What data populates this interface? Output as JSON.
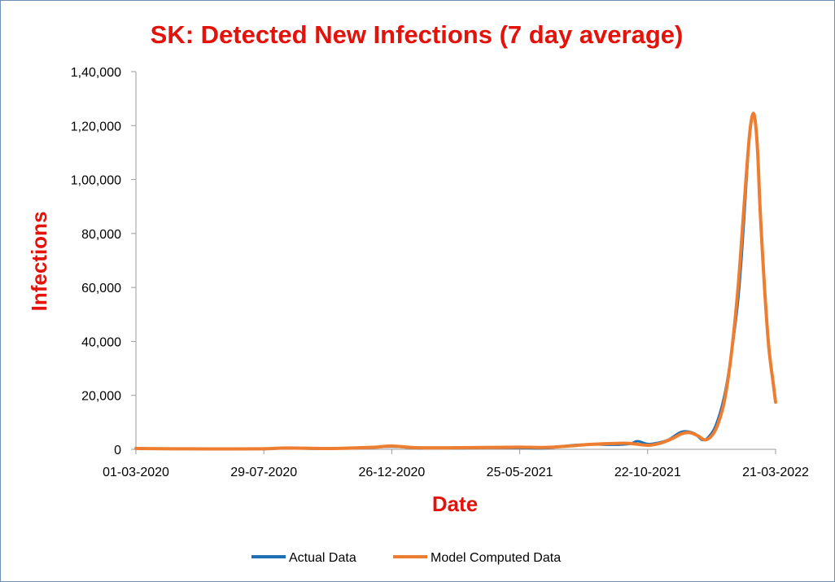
{
  "chart_data": {
    "type": "line",
    "title": "SK: Detected New Infections (7 day average)",
    "xlabel": "Date",
    "ylabel": "Infections",
    "x_tick_labels": [
      "01-03-2020",
      "29-07-2020",
      "26-12-2020",
      "25-05-2021",
      "22-10-2021",
      "21-03-2022"
    ],
    "y_tick_labels": [
      "0",
      "20,000",
      "40,000",
      "60,000",
      "80,000",
      "1,00,000",
      "1,20,000",
      "1,40,000"
    ],
    "ylim": [
      0,
      140000
    ],
    "xlim": [
      "2020-03-01",
      "2022-03-21"
    ],
    "grid": false,
    "legend_position": "bottom",
    "colors": {
      "actual": "#1f6fb5",
      "model": "#ed7d31",
      "title": "#e3120b",
      "axis": "#9a9a9a",
      "border": "#6e8fb8"
    },
    "series": [
      {
        "name": "Actual Data",
        "x": [
          "2020-03-01",
          "2020-03-15",
          "2020-04-15",
          "2020-06-01",
          "2020-07-29",
          "2020-08-25",
          "2020-10-01",
          "2020-11-15",
          "2020-12-26",
          "2021-01-25",
          "2021-02-15",
          "2021-03-15",
          "2021-04-15",
          "2021-05-25",
          "2021-06-25",
          "2021-07-25",
          "2021-08-15",
          "2021-09-15",
          "2021-10-01",
          "2021-10-10",
          "2021-10-22",
          "2021-11-01",
          "2021-11-15",
          "2021-12-01",
          "2021-12-15",
          "2021-12-25",
          "2022-01-01",
          "2022-01-10",
          "2022-01-20",
          "2022-01-28",
          "2022-02-05",
          "2022-02-10",
          "2022-02-15",
          "2022-02-18",
          "2022-02-21"
        ],
        "y": [
          500,
          300,
          200,
          100,
          100,
          400,
          200,
          500,
          1000,
          400,
          600,
          400,
          600,
          500,
          400,
          1500,
          1800,
          1700,
          2000,
          3000,
          2000,
          2300,
          3500,
          6500,
          6000,
          3500,
          4500,
          9000,
          20000,
          35000,
          55000,
          75000,
          100000,
          115000,
          122000
        ]
      },
      {
        "name": "Model Computed Data",
        "x": [
          "2020-03-01",
          "2020-04-15",
          "2020-06-01",
          "2020-07-29",
          "2020-08-25",
          "2020-10-15",
          "2020-12-01",
          "2020-12-26",
          "2021-01-25",
          "2021-03-15",
          "2021-04-25",
          "2021-05-25",
          "2021-06-25",
          "2021-07-25",
          "2021-08-15",
          "2021-09-15",
          "2021-10-01",
          "2021-10-22",
          "2021-11-05",
          "2021-11-20",
          "2021-12-01",
          "2021-12-10",
          "2021-12-20",
          "2021-12-28",
          "2022-01-05",
          "2022-01-12",
          "2022-01-20",
          "2022-01-28",
          "2022-02-05",
          "2022-02-12",
          "2022-02-18",
          "2022-02-22",
          "2022-02-25",
          "2022-02-28",
          "2022-03-03",
          "2022-03-08",
          "2022-03-13",
          "2022-03-18",
          "2022-03-21"
        ],
        "y": [
          300,
          200,
          150,
          200,
          500,
          300,
          700,
          1200,
          600,
          600,
          700,
          800,
          700,
          1300,
          1800,
          2200,
          2200,
          1500,
          2200,
          4000,
          5800,
          6200,
          5000,
          3500,
          5000,
          9000,
          18000,
          35000,
          60000,
          90000,
          115000,
          124000,
          122000,
          110000,
          88000,
          60000,
          38000,
          25000,
          17500
        ]
      }
    ]
  }
}
